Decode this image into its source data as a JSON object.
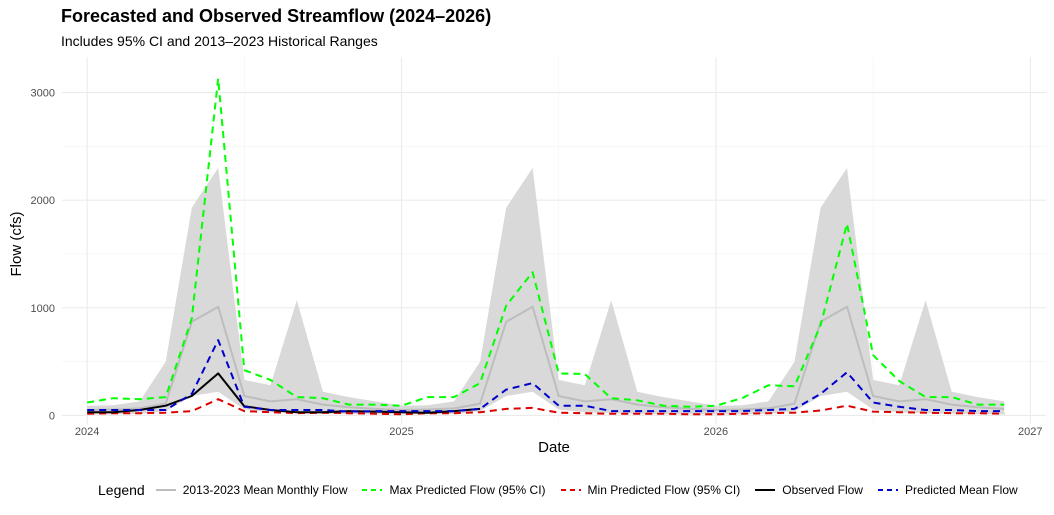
{
  "chart_data": {
    "type": "line",
    "title": "Forecasted and Observed Streamflow (2024–2026)",
    "subtitle": "Includes 95% CI and 2013–2023 Historical Ranges",
    "xlabel": "Date",
    "ylabel": "Flow (cfs)",
    "xlim": [
      2023.92,
      2027.05
    ],
    "ylim": [
      -80,
      3330
    ],
    "x_ticks": [
      2024,
      2025,
      2026,
      2027
    ],
    "x_tick_labels": [
      "2024",
      "2025",
      "2026",
      "2027"
    ],
    "y_ticks": [
      0,
      1000,
      2000,
      3000
    ],
    "y_tick_labels": [
      "0",
      "1000",
      "2000",
      "3000"
    ],
    "grid": true,
    "legend_position": "bottom",
    "legend_title": "Legend",
    "historical_range_band": {
      "color": "#d9d9d9",
      "x": [
        2024.0,
        2024.083,
        2024.167,
        2024.25,
        2024.333,
        2024.417,
        2024.5,
        2024.583,
        2024.667,
        2024.75,
        2024.833,
        2024.917,
        2025.0,
        2025.083,
        2025.167,
        2025.25,
        2025.333,
        2025.417,
        2025.5,
        2025.583,
        2025.667,
        2025.75,
        2025.833,
        2025.917,
        2026.0,
        2026.083,
        2026.167,
        2026.25,
        2026.333,
        2026.417,
        2026.5,
        2026.583,
        2026.667,
        2026.75,
        2026.833,
        2026.917
      ],
      "low": [
        10,
        10,
        15,
        40,
        180,
        220,
        55,
        30,
        20,
        15,
        12,
        10,
        10,
        10,
        15,
        40,
        180,
        220,
        55,
        30,
        20,
        15,
        12,
        10,
        10,
        10,
        15,
        40,
        180,
        220,
        55,
        30,
        20,
        15,
        12,
        10
      ],
      "high": [
        90,
        95,
        130,
        500,
        1930,
        2300,
        330,
        280,
        1070,
        220,
        170,
        130,
        90,
        95,
        130,
        500,
        1930,
        2300,
        330,
        280,
        1070,
        220,
        170,
        130,
        90,
        95,
        130,
        500,
        1930,
        2300,
        330,
        280,
        1070,
        220,
        170,
        130
      ]
    },
    "series": [
      {
        "name": "2013-2023 Mean Monthly Flow",
        "color": "#bdbdbd",
        "dash": "solid",
        "x": [
          2024.0,
          2024.083,
          2024.167,
          2024.25,
          2024.333,
          2024.417,
          2024.5,
          2024.583,
          2024.667,
          2024.75,
          2024.833,
          2024.917,
          2025.0,
          2025.083,
          2025.167,
          2025.25,
          2025.333,
          2025.417,
          2025.5,
          2025.583,
          2025.667,
          2025.75,
          2025.833,
          2025.917,
          2026.0,
          2026.083,
          2026.167,
          2026.25,
          2026.333,
          2026.417,
          2026.5,
          2026.583,
          2026.667,
          2026.75,
          2026.833,
          2026.917
        ],
        "values": [
          50,
          55,
          65,
          110,
          870,
          1010,
          180,
          130,
          150,
          100,
          75,
          60,
          50,
          55,
          65,
          110,
          870,
          1010,
          180,
          130,
          150,
          100,
          75,
          60,
          50,
          55,
          65,
          110,
          870,
          1010,
          180,
          130,
          150,
          100,
          75,
          60
        ]
      },
      {
        "name": "Max Predicted Flow (95% CI)",
        "color": "#00ff00",
        "dash": "dashed",
        "x": [
          2024.0,
          2024.083,
          2024.167,
          2024.25,
          2024.333,
          2024.417,
          2024.5,
          2024.583,
          2024.667,
          2024.75,
          2024.833,
          2024.917,
          2025.0,
          2025.083,
          2025.167,
          2025.25,
          2025.333,
          2025.417,
          2025.5,
          2025.583,
          2025.667,
          2025.75,
          2025.833,
          2025.917,
          2026.0,
          2026.083,
          2026.167,
          2026.25,
          2026.333,
          2026.417,
          2026.5,
          2026.583,
          2026.667,
          2026.75,
          2026.833,
          2026.917
        ],
        "values": [
          120,
          160,
          150,
          170,
          900,
          3130,
          420,
          330,
          170,
          160,
          100,
          100,
          90,
          170,
          170,
          300,
          1020,
          1330,
          390,
          385,
          160,
          140,
          90,
          80,
          90,
          160,
          280,
          270,
          840,
          1780,
          560,
          320,
          170,
          170,
          100,
          100
        ]
      },
      {
        "name": "Min Predicted Flow (95% CI)",
        "color": "#dd0000",
        "dash": "dashed",
        "x": [
          2024.0,
          2024.083,
          2024.167,
          2024.25,
          2024.333,
          2024.417,
          2024.5,
          2024.583,
          2024.667,
          2024.75,
          2024.833,
          2024.917,
          2025.0,
          2025.083,
          2025.167,
          2025.25,
          2025.333,
          2025.417,
          2025.5,
          2025.583,
          2025.667,
          2025.75,
          2025.833,
          2025.917,
          2026.0,
          2026.083,
          2026.167,
          2026.25,
          2026.333,
          2026.417,
          2026.5,
          2026.583,
          2026.667,
          2026.75,
          2026.833,
          2026.917
        ],
        "values": [
          15,
          20,
          20,
          25,
          40,
          150,
          40,
          30,
          20,
          25,
          20,
          15,
          10,
          20,
          20,
          30,
          60,
          70,
          25,
          20,
          15,
          15,
          15,
          10,
          10,
          15,
          20,
          25,
          45,
          90,
          35,
          30,
          25,
          20,
          20,
          15
        ]
      },
      {
        "name": "Observed Flow",
        "color": "#000000",
        "dash": "solid",
        "x": [
          2024.0,
          2024.083,
          2024.167,
          2024.25,
          2024.333,
          2024.417,
          2024.5,
          2024.583,
          2024.667,
          2024.75,
          2024.833,
          2024.917,
          2025.0,
          2025.083,
          2025.167,
          2025.25
        ],
        "values": [
          30,
          30,
          50,
          90,
          180,
          390,
          85,
          50,
          30,
          30,
          40,
          35,
          30,
          25,
          40,
          60
        ]
      },
      {
        "name": "Predicted Mean Flow",
        "color": "#0000cc",
        "dash": "dashed",
        "x": [
          2024.0,
          2024.083,
          2024.167,
          2024.25,
          2024.333,
          2024.417,
          2024.5,
          2024.583,
          2024.667,
          2024.75,
          2024.833,
          2024.917,
          2025.0,
          2025.083,
          2025.167,
          2025.25,
          2025.333,
          2025.417,
          2025.5,
          2025.583,
          2025.667,
          2025.75,
          2025.833,
          2025.917,
          2026.0,
          2026.083,
          2026.167,
          2026.25,
          2026.333,
          2026.417,
          2026.5,
          2026.583,
          2026.667,
          2026.75,
          2026.833,
          2026.917
        ],
        "values": [
          50,
          50,
          50,
          50,
          200,
          700,
          80,
          50,
          50,
          50,
          35,
          40,
          40,
          40,
          40,
          60,
          240,
          300,
          90,
          90,
          40,
          40,
          40,
          40,
          40,
          40,
          50,
          60,
          200,
          400,
          120,
          80,
          50,
          50,
          40,
          40
        ]
      }
    ]
  }
}
